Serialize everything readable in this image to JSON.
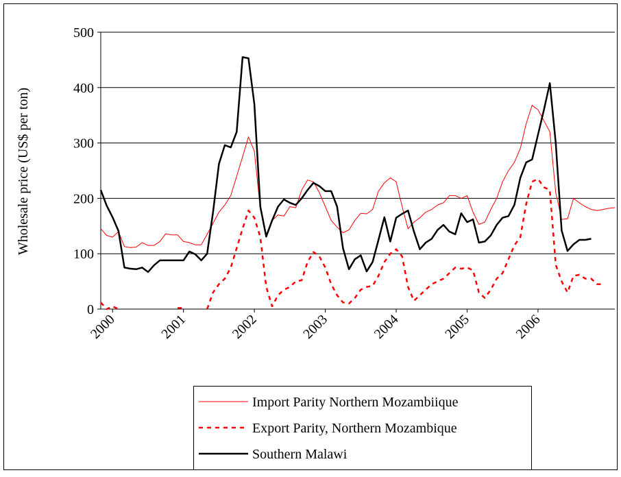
{
  "chart_data": {
    "type": "line",
    "y_label": "Wholesale price (US$ per ton)",
    "categories": [
      null,
      null,
      "2000",
      null,
      null,
      null,
      null,
      null,
      null,
      null,
      null,
      null,
      null,
      null,
      "2001",
      null,
      null,
      null,
      null,
      null,
      null,
      null,
      null,
      null,
      null,
      null,
      "2002",
      null,
      null,
      null,
      null,
      null,
      null,
      null,
      null,
      null,
      null,
      null,
      "2003",
      null,
      null,
      null,
      null,
      null,
      null,
      null,
      null,
      null,
      null,
      null,
      "2004",
      null,
      null,
      null,
      null,
      null,
      null,
      null,
      null,
      null,
      null,
      null,
      "2005",
      null,
      null,
      null,
      null,
      null,
      null,
      null,
      null,
      null,
      null,
      null,
      "2006",
      null,
      null,
      null,
      null,
      null,
      null,
      null,
      null,
      null,
      null,
      null,
      null,
      null
    ],
    "series": [
      {
        "name": "Import Parity Northern Mozambiique",
        "color": "#ff0000",
        "style": "solid",
        "width": 1,
        "values": [
          145,
          133,
          130,
          140,
          113,
          111,
          112,
          120,
          115,
          115,
          122,
          136,
          134,
          134,
          122,
          120,
          116,
          116,
          135,
          155,
          175,
          188,
          205,
          240,
          275,
          311,
          285,
          180,
          135,
          160,
          170,
          168,
          185,
          183,
          215,
          233,
          230,
          210,
          185,
          160,
          148,
          138,
          143,
          160,
          173,
          172,
          180,
          213,
          228,
          237,
          230,
          185,
          145,
          157,
          165,
          175,
          180,
          188,
          192,
          205,
          205,
          200,
          205,
          175,
          153,
          157,
          180,
          200,
          230,
          250,
          265,
          290,
          335,
          368,
          360,
          340,
          320,
          210,
          162,
          163,
          200,
          192,
          185,
          180,
          178,
          180,
          182,
          183
        ]
      },
      {
        "name": "Export Parity, Northern Mozambique",
        "color": "#ff0000",
        "style": "dashed",
        "width": 2.5,
        "values": [
          12,
          0,
          5,
          0,
          null,
          null,
          null,
          null,
          null,
          null,
          null,
          2,
          null,
          2,
          2,
          null,
          null,
          null,
          0,
          30,
          45,
          55,
          75,
          110,
          145,
          178,
          165,
          130,
          40,
          5,
          25,
          35,
          40,
          50,
          52,
          85,
          103,
          95,
          75,
          45,
          25,
          12,
          10,
          20,
          35,
          40,
          42,
          60,
          85,
          100,
          108,
          95,
          40,
          15,
          25,
          35,
          45,
          50,
          55,
          65,
          75,
          73,
          75,
          70,
          30,
          20,
          35,
          55,
          65,
          90,
          115,
          130,
          190,
          230,
          235,
          220,
          215,
          80,
          50,
          30,
          60,
          62,
          55,
          55,
          45,
          45,
          null,
          null
        ]
      },
      {
        "name": "Southern Malawi",
        "color": "#000000",
        "style": "solid",
        "width": 2.5,
        "values": [
          215,
          187,
          166,
          141,
          75,
          73,
          72,
          75,
          67,
          79,
          88,
          88,
          88,
          88,
          88,
          104,
          99,
          88,
          100,
          175,
          262,
          296,
          292,
          320,
          455,
          453,
          370,
          185,
          131,
          160,
          185,
          198,
          192,
          188,
          200,
          215,
          228,
          222,
          213,
          213,
          185,
          110,
          72,
          90,
          97,
          68,
          85,
          125,
          166,
          122,
          165,
          172,
          178,
          140,
          108,
          120,
          127,
          143,
          152,
          140,
          135,
          173,
          157,
          162,
          120,
          122,
          133,
          152,
          165,
          168,
          188,
          237,
          265,
          270,
          315,
          360,
          408,
          300,
          142,
          105,
          117,
          125,
          125,
          127,
          null,
          null,
          null,
          null
        ]
      }
    ],
    "ylim": [
      0,
      500
    ],
    "yticks": [
      0,
      100,
      200,
      300,
      400,
      500
    ],
    "grid": true,
    "legend": "bottom"
  }
}
